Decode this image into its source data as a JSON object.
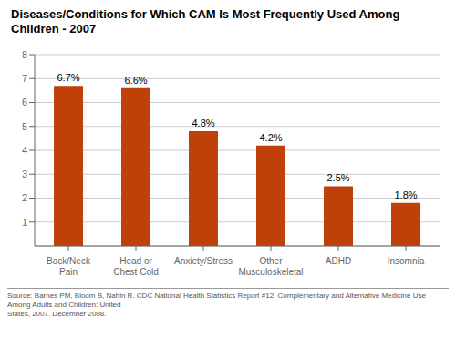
{
  "chart_data": {
    "type": "bar",
    "title": "Diseases/Conditions for Which CAM Is Most Frequently Used Among Children - 2007",
    "categories": [
      "Back/Neck Pain",
      "Head or Chest Cold",
      "Anxiety/Stress",
      "Other\nMusculoskeletal",
      "ADHD",
      "Insomnia"
    ],
    "values": [
      6.7,
      6.6,
      4.8,
      4.2,
      2.5,
      1.8
    ],
    "value_labels": [
      "6.7%",
      "6.6%",
      "4.8%",
      "4.2%",
      "2.5%",
      "1.8%"
    ],
    "data_labels": true,
    "color": "#C0400A",
    "ylim": [
      0,
      8
    ],
    "yticks": [
      1,
      2,
      3,
      4,
      5,
      6,
      7,
      8
    ],
    "grid": true,
    "annotations": [
      "Source: Barnes PM, Bloom B, Nahin R. CDC National Health Statistics Report #12. Complementary and Alternative Medicine Use Among Adults and Children: United\nStates, 2007. December 2008."
    ]
  }
}
